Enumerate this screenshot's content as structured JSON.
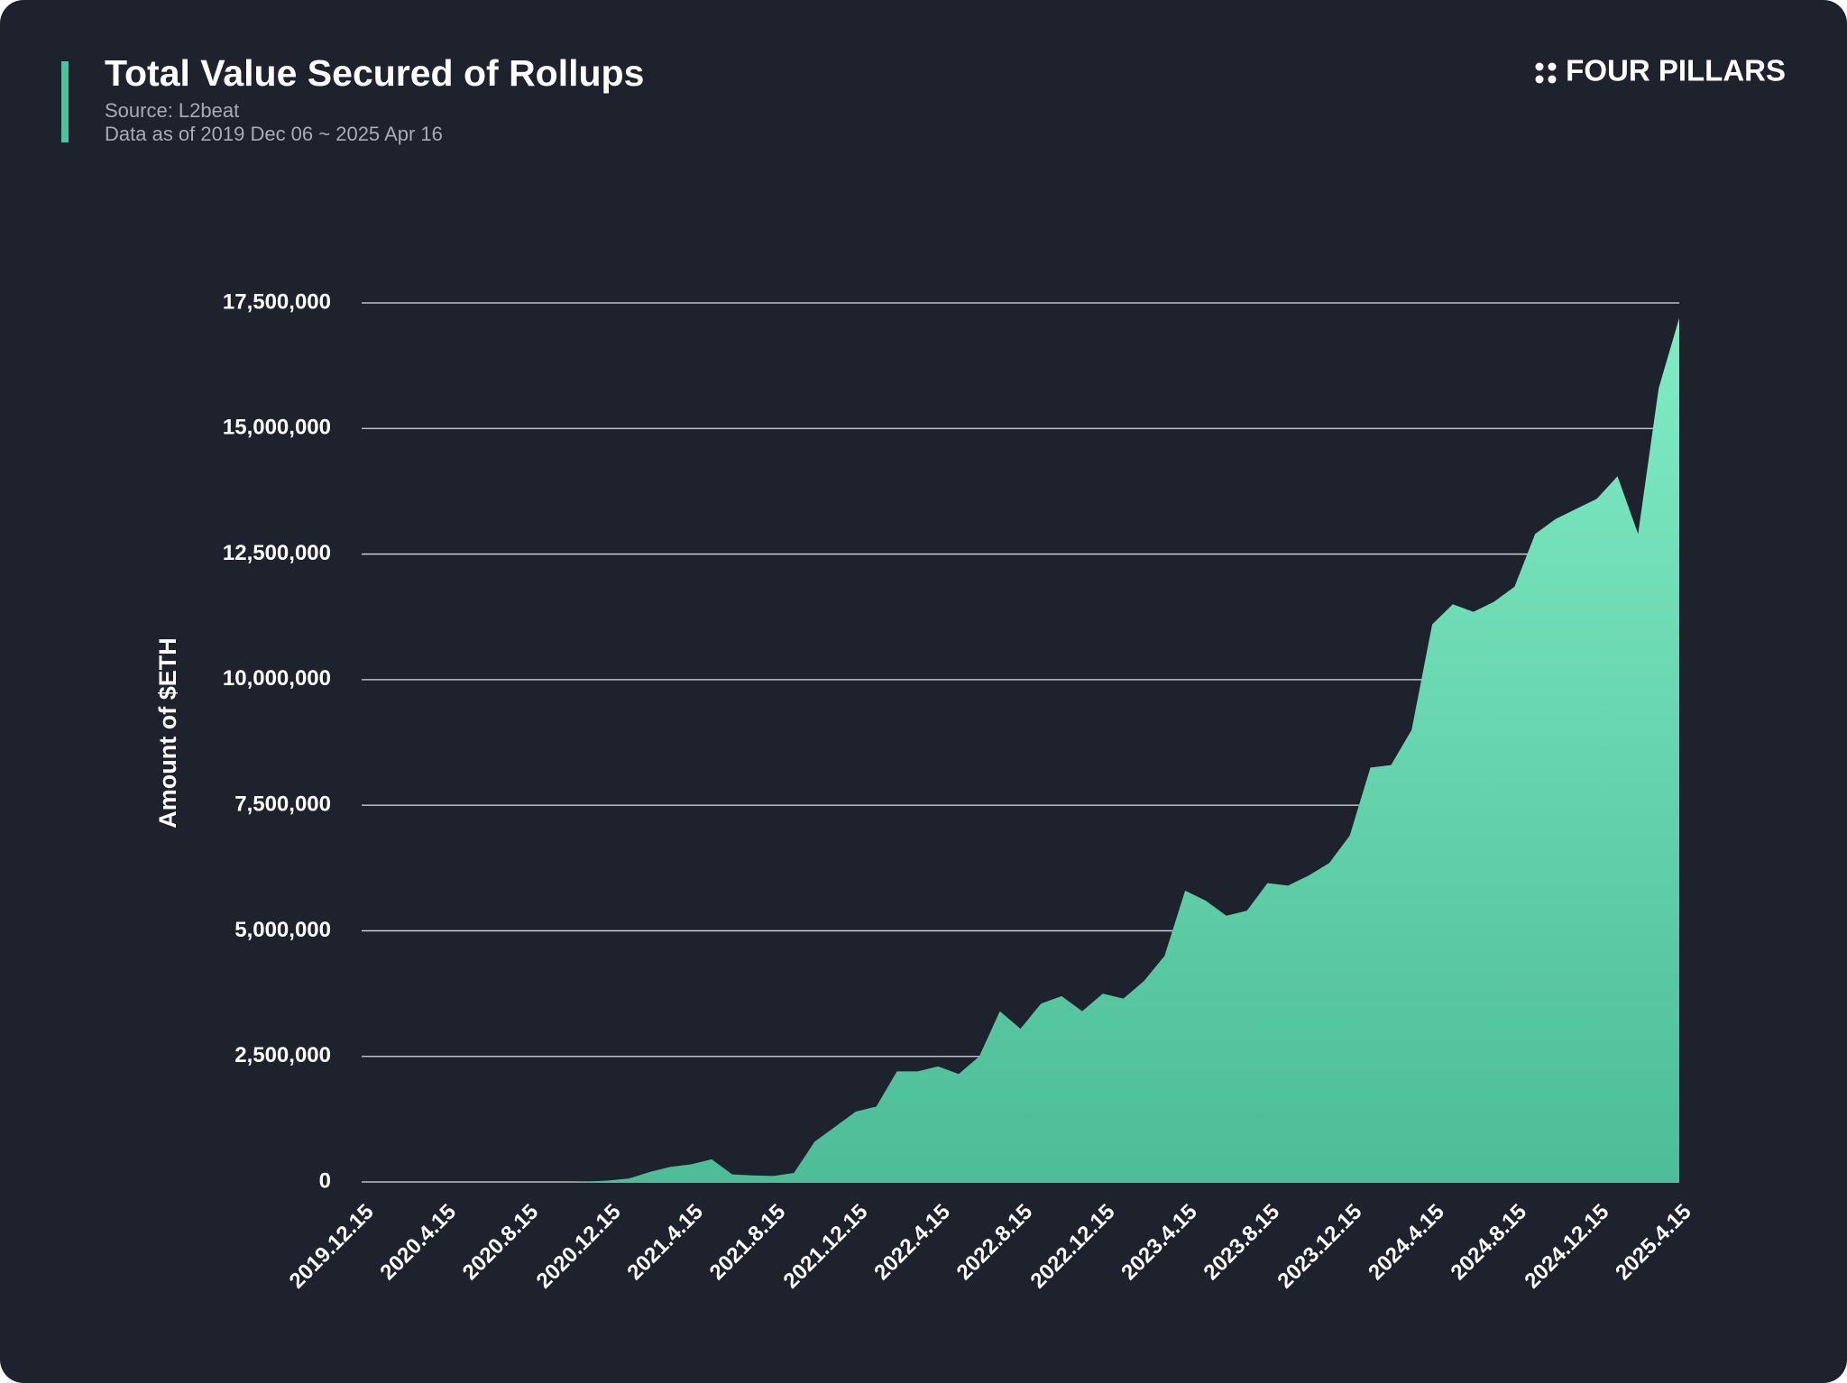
{
  "chart_data": {
    "type": "area",
    "title": "Total Value Secured of Rollups",
    "subtitle": "Source: L2beat",
    "note": "Data as of 2019 Dec 06 ~ 2025 Apr 16",
    "brand": "FOUR PILLARS",
    "ylabel": "Amount of $ETH",
    "color": "#6cdcb4",
    "grid": true,
    "categories": [
      "2019.12.15",
      null,
      null,
      null,
      "2020.4.15",
      null,
      null,
      null,
      "2020.8.15",
      null,
      null,
      null,
      "2020.12.15",
      null,
      null,
      null,
      "2021.4.15",
      null,
      null,
      null,
      "2021.8.15",
      null,
      null,
      null,
      "2021.12.15",
      null,
      null,
      null,
      "2022.4.15",
      null,
      null,
      null,
      "2022.8.15",
      null,
      null,
      null,
      "2022.12.15",
      null,
      null,
      null,
      "2023.4.15",
      null,
      null,
      null,
      "2023.8.15",
      null,
      null,
      null,
      "2023.12.15",
      null,
      null,
      null,
      "2024.4.15",
      null,
      null,
      null,
      "2024.8.15",
      null,
      null,
      null,
      "2024.12.15",
      null,
      null,
      null,
      "2025.4.15"
    ],
    "values": [
      0,
      0,
      0,
      0,
      0,
      0,
      0,
      0,
      0,
      0,
      0,
      10000,
      30000,
      70000,
      200000,
      300000,
      350000,
      450000,
      150000,
      130000,
      120000,
      180000,
      800000,
      1100000,
      1400000,
      1500000,
      2200000,
      2200000,
      2300000,
      2150000,
      2500000,
      3400000,
      3050000,
      3550000,
      3700000,
      3400000,
      3750000,
      3650000,
      4000000,
      4500000,
      5800000,
      5600000,
      5300000,
      5400000,
      5950000,
      5900000,
      6100000,
      6350000,
      6900000,
      8250000,
      8300000,
      9000000,
      11100000,
      11500000,
      11350000,
      11550000,
      11850000,
      12900000,
      13200000,
      13400000,
      13600000,
      14050000,
      12900000,
      15800000,
      17200000
    ],
    "ylim": [
      0,
      17500000
    ],
    "yticks": [
      0,
      {
        "value": 2500000,
        "label": "2,500,000"
      },
      {
        "value": 5000000,
        "label": "5,000,000"
      },
      {
        "value": 7500000,
        "label": "7,500,000"
      },
      {
        "value": 10000000,
        "label": "10,000,000"
      },
      {
        "value": 12500000,
        "label": "12,500,000"
      },
      {
        "value": 15000000,
        "label": "15,000,000"
      },
      {
        "value": 17500000,
        "label": "17,500,000"
      }
    ]
  }
}
